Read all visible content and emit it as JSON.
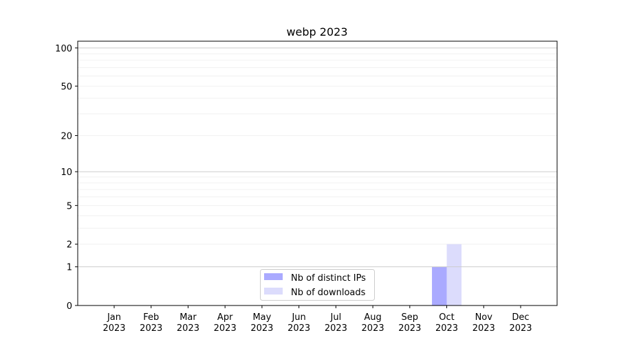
{
  "chart_data": {
    "type": "bar",
    "title": "webp 2023",
    "xlabel": "",
    "ylabel": "",
    "categories": [
      "Jan\n2023",
      "Feb\n2023",
      "Mar\n2023",
      "Apr\n2023",
      "May\n2023",
      "Jun\n2023",
      "Jul\n2023",
      "Aug\n2023",
      "Sep\n2023",
      "Oct\n2023",
      "Nov\n2023",
      "Dec\n2023"
    ],
    "series": [
      {
        "name": "Nb of distinct IPs",
        "color": "#aaaaff",
        "values": [
          0,
          0,
          0,
          0,
          0,
          0,
          0,
          0,
          0,
          1,
          0,
          0
        ]
      },
      {
        "name": "Nb of downloads",
        "color": "#dcdcfc",
        "values": [
          0,
          0,
          0,
          0,
          0,
          0,
          0,
          0,
          0,
          2,
          0,
          0
        ]
      }
    ],
    "yscale": "log(y+1)",
    "ylim": [
      0,
      113
    ],
    "yticks": [
      0,
      1,
      2,
      5,
      10,
      20,
      50,
      100
    ],
    "grid": true,
    "legend": "lower center"
  }
}
